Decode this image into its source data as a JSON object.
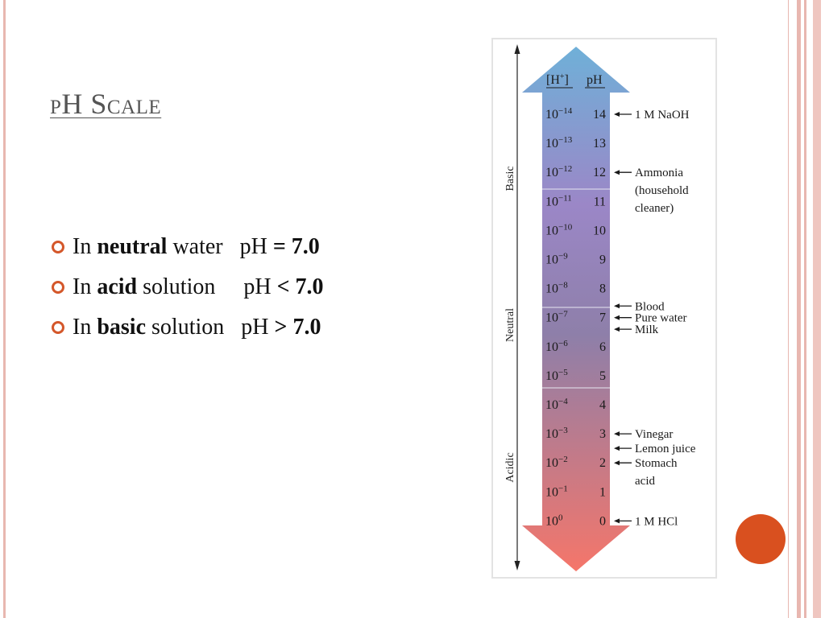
{
  "slide": {
    "title": "pH Scale",
    "bullets": [
      {
        "prefix": "In ",
        "bold": "neutral",
        "mid": " water   pH ",
        "cond": "= 7.0"
      },
      {
        "prefix": "In ",
        "bold": "acid",
        "mid": " solution     pH ",
        "cond": "< 7.0"
      },
      {
        "prefix": "In ",
        "bold": "basic",
        "mid": " solution   pH ",
        "cond": "> 7.0"
      }
    ],
    "colors": {
      "accent": "#d9501f",
      "border": "#e8b7b0"
    }
  },
  "diagram": {
    "header": {
      "h": "[H",
      "plus": "+",
      "close": "]",
      "ph": "pH"
    },
    "rows": [
      {
        "exp": "−14",
        "ph": "14"
      },
      {
        "exp": "−13",
        "ph": "13"
      },
      {
        "exp": "−12",
        "ph": "12"
      },
      {
        "exp": "−11",
        "ph": "11"
      },
      {
        "exp": "−10",
        "ph": "10"
      },
      {
        "exp": "−9",
        "ph": "9"
      },
      {
        "exp": "−8",
        "ph": "8"
      },
      {
        "exp": "−7",
        "ph": "7"
      },
      {
        "exp": "−6",
        "ph": "6"
      },
      {
        "exp": "−5",
        "ph": "5"
      },
      {
        "exp": "−4",
        "ph": "4"
      },
      {
        "exp": "−3",
        "ph": "3"
      },
      {
        "exp": "−2",
        "ph": "2"
      },
      {
        "exp": "−1",
        "ph": "1"
      },
      {
        "exp": "0",
        "ph": "0"
      }
    ],
    "base": "10",
    "regions": {
      "basic": "Basic",
      "neutral": "Neutral",
      "acidic": "Acidic"
    },
    "examples": [
      {
        "ph": 14,
        "lines": [
          "1 M NaOH"
        ]
      },
      {
        "ph": 12,
        "lines": [
          "Ammonia",
          "(household",
          " cleaner)"
        ]
      },
      {
        "ph": 7.4,
        "lines": [
          "Blood"
        ]
      },
      {
        "ph": 7,
        "lines": [
          "Pure water"
        ]
      },
      {
        "ph": 6.6,
        "lines": [
          "Milk"
        ]
      },
      {
        "ph": 3,
        "lines": [
          "Vinegar"
        ]
      },
      {
        "ph": 2.5,
        "lines": [
          "Lemon juice"
        ]
      },
      {
        "ph": 2,
        "lines": [
          "Stomach",
          "acid"
        ]
      },
      {
        "ph": 0,
        "lines": [
          "1 M HCl"
        ]
      }
    ],
    "colors": {
      "top": "#6fb0d8",
      "mid": "#9b87c7",
      "low": "#8e7fa9",
      "bottom": "#f5766a"
    }
  }
}
